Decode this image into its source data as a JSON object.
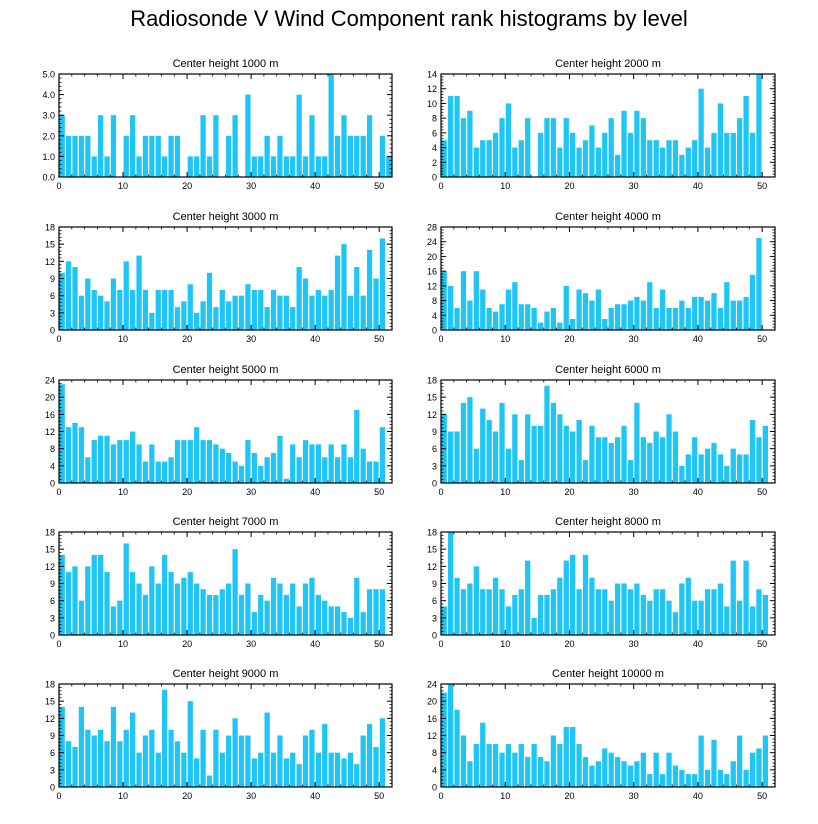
{
  "title": "Radiosonde V Wind Component rank histograms by level",
  "bar_color": "#1EC5F5",
  "x_ticks": [
    0,
    10,
    20,
    30,
    40,
    50
  ],
  "chart_data": [
    {
      "type": "bar",
      "title": "Center height 1000 m",
      "xlim": [
        0,
        52
      ],
      "ylim": [
        0,
        5
      ],
      "yticks": [
        0,
        1,
        2,
        3,
        4,
        5
      ],
      "ytick_labels": [
        "0.0",
        "1.0",
        "2.0",
        "3.0",
        "4.0",
        "5.0"
      ],
      "values": [
        3,
        2,
        2,
        2,
        2,
        1,
        3,
        1,
        3,
        0,
        2,
        3,
        1,
        2,
        2,
        2,
        1,
        2,
        2,
        0,
        1,
        1,
        3,
        1,
        3,
        0,
        2,
        3,
        0,
        4,
        1,
        1,
        2,
        1,
        2,
        1,
        1,
        4,
        1,
        3,
        1,
        1,
        5,
        2,
        3,
        2,
        2,
        2,
        3,
        0,
        2,
        1
      ]
    },
    {
      "type": "bar",
      "title": "Center height 2000 m",
      "xlim": [
        0,
        52
      ],
      "ylim": [
        0,
        14
      ],
      "yticks": [
        0,
        2,
        4,
        6,
        8,
        10,
        12,
        14
      ],
      "ytick_labels": [
        "0",
        "2",
        "4",
        "6",
        "8",
        "10",
        "12",
        "14"
      ],
      "values": [
        5,
        11,
        11,
        8,
        9,
        4,
        5,
        5,
        6,
        8,
        10,
        4,
        5,
        8,
        0,
        6,
        8,
        8,
        4,
        8,
        6,
        4,
        5,
        7,
        4,
        6,
        8,
        3,
        9,
        6,
        9,
        8,
        5,
        5,
        4,
        5,
        5,
        3,
        4,
        5,
        12,
        4,
        6,
        10,
        6,
        6,
        8,
        11,
        6,
        14,
        0,
        0
      ]
    },
    {
      "type": "bar",
      "title": "Center height 3000 m",
      "xlim": [
        0,
        52
      ],
      "ylim": [
        0,
        18
      ],
      "yticks": [
        0,
        3,
        6,
        9,
        12,
        15,
        18
      ],
      "ytick_labels": [
        "0",
        "3",
        "6",
        "9",
        "12",
        "15",
        "18"
      ],
      "values": [
        10,
        12,
        11,
        6,
        9,
        7,
        6,
        5,
        9,
        7,
        12,
        7,
        13,
        7,
        3,
        7,
        7,
        7,
        4,
        5,
        8,
        3,
        5,
        10,
        4,
        7,
        5,
        6,
        6,
        8,
        7,
        7,
        4,
        7,
        6,
        6,
        4,
        11,
        9,
        6,
        7,
        6,
        7,
        13,
        15,
        6,
        11,
        6,
        14,
        9,
        16,
        0
      ]
    },
    {
      "type": "bar",
      "title": "Center height 4000 m",
      "xlim": [
        0,
        52
      ],
      "ylim": [
        0,
        28
      ],
      "yticks": [
        0,
        4,
        8,
        12,
        16,
        20,
        24,
        28
      ],
      "ytick_labels": [
        "0",
        "4",
        "8",
        "12",
        "16",
        "20",
        "24",
        "28"
      ],
      "values": [
        16,
        12,
        6,
        16,
        8,
        16,
        11,
        6,
        5,
        7,
        11,
        13,
        7,
        7,
        6,
        2,
        5,
        6,
        2,
        12,
        3,
        11,
        10,
        8,
        11,
        3,
        6,
        7,
        7,
        8,
        9,
        8,
        13,
        6,
        11,
        6,
        6,
        8,
        6,
        9,
        9,
        8,
        10,
        6,
        13,
        8,
        8,
        9,
        15,
        25,
        0,
        0
      ]
    },
    {
      "type": "bar",
      "title": "Center height 5000 m",
      "xlim": [
        0,
        52
      ],
      "ylim": [
        0,
        24
      ],
      "yticks": [
        0,
        4,
        8,
        12,
        16,
        20,
        24
      ],
      "ytick_labels": [
        "0",
        "4",
        "8",
        "12",
        "16",
        "20",
        "24"
      ],
      "values": [
        23,
        13,
        14,
        13,
        6,
        10,
        11,
        11,
        9,
        10,
        10,
        12,
        9,
        5,
        9,
        5,
        5,
        6,
        10,
        10,
        10,
        13,
        10,
        10,
        9,
        8,
        7,
        5,
        4,
        10,
        7,
        4,
        6,
        7,
        11,
        1,
        9,
        6,
        10,
        9,
        9,
        6,
        9,
        6,
        9,
        6,
        17,
        8,
        5,
        5,
        13,
        0
      ]
    },
    {
      "type": "bar",
      "title": "Center height 6000 m",
      "xlim": [
        0,
        52
      ],
      "ylim": [
        0,
        18
      ],
      "yticks": [
        0,
        3,
        6,
        9,
        12,
        15,
        18
      ],
      "ytick_labels": [
        "0",
        "3",
        "6",
        "9",
        "12",
        "15",
        "18"
      ],
      "values": [
        12,
        9,
        9,
        14,
        15,
        6,
        13,
        11,
        9,
        14,
        6,
        12,
        4,
        12,
        10,
        10,
        17,
        14,
        12,
        10,
        9,
        11,
        4,
        10,
        8,
        8,
        7,
        8,
        10,
        4,
        14,
        8,
        7,
        9,
        8,
        12,
        9,
        3,
        5,
        8,
        5,
        6,
        7,
        5,
        3,
        6,
        5,
        5,
        11,
        8,
        10,
        0
      ]
    },
    {
      "type": "bar",
      "title": "Center height 7000 m",
      "xlim": [
        0,
        52
      ],
      "ylim": [
        0,
        18
      ],
      "yticks": [
        0,
        3,
        6,
        9,
        12,
        15,
        18
      ],
      "ytick_labels": [
        "0",
        "3",
        "6",
        "9",
        "12",
        "15",
        "18"
      ],
      "values": [
        14,
        11,
        12,
        6,
        12,
        14,
        14,
        11,
        5,
        6,
        16,
        11,
        9,
        7,
        12,
        9,
        14,
        11,
        9,
        10,
        11,
        9,
        8,
        7,
        7,
        8,
        9,
        15,
        7,
        9,
        4,
        7,
        6,
        10,
        9,
        7,
        9,
        5,
        9,
        10,
        7,
        6,
        5,
        5,
        4,
        3,
        10,
        4,
        8,
        8,
        8,
        0
      ]
    },
    {
      "type": "bar",
      "title": "Center height 8000 m",
      "xlim": [
        0,
        52
      ],
      "ylim": [
        0,
        18
      ],
      "yticks": [
        0,
        3,
        6,
        9,
        12,
        15,
        18
      ],
      "ytick_labels": [
        "0",
        "3",
        "6",
        "9",
        "12",
        "15",
        "18"
      ],
      "values": [
        5,
        18,
        10,
        8,
        9,
        12,
        8,
        8,
        10,
        8,
        5,
        7,
        8,
        13,
        3,
        7,
        7,
        8,
        10,
        13,
        14,
        8,
        14,
        10,
        8,
        8,
        6,
        9,
        9,
        8,
        9,
        7,
        6,
        8,
        8,
        6,
        4,
        9,
        10,
        6,
        6,
        8,
        8,
        9,
        5,
        13,
        6,
        13,
        5,
        8,
        7,
        0
      ]
    },
    {
      "type": "bar",
      "title": "Center height 9000 m",
      "xlim": [
        0,
        52
      ],
      "ylim": [
        0,
        18
      ],
      "yticks": [
        0,
        3,
        6,
        9,
        12,
        15,
        18
      ],
      "ytick_labels": [
        "0",
        "3",
        "6",
        "9",
        "12",
        "15",
        "18"
      ],
      "values": [
        14,
        8,
        7,
        14,
        10,
        9,
        10,
        8,
        14,
        8,
        10,
        13,
        6,
        9,
        10,
        6,
        17,
        10,
        8,
        6,
        15,
        5,
        10,
        2,
        10,
        6,
        9,
        12,
        9,
        9,
        5,
        6,
        13,
        6,
        9,
        5,
        6,
        4,
        9,
        10,
        6,
        11,
        6,
        6,
        5,
        6,
        4,
        9,
        11,
        7,
        12,
        0
      ]
    },
    {
      "type": "bar",
      "title": "Center height 10000 m",
      "xlim": [
        0,
        52
      ],
      "ylim": [
        0,
        24
      ],
      "yticks": [
        0,
        4,
        8,
        12,
        16,
        20,
        24
      ],
      "ytick_labels": [
        "0",
        "4",
        "8",
        "12",
        "16",
        "20",
        "24"
      ],
      "values": [
        22,
        24,
        18,
        12,
        6,
        10,
        15,
        10,
        10,
        8,
        10,
        8,
        10,
        7,
        10,
        7,
        6,
        12,
        10,
        14,
        14,
        10,
        7,
        5,
        6,
        9,
        8,
        7,
        6,
        5,
        6,
        8,
        3,
        8,
        3,
        8,
        5,
        4,
        3,
        3,
        12,
        4,
        11,
        4,
        3,
        6,
        12,
        4,
        8,
        9,
        12,
        0
      ]
    }
  ]
}
